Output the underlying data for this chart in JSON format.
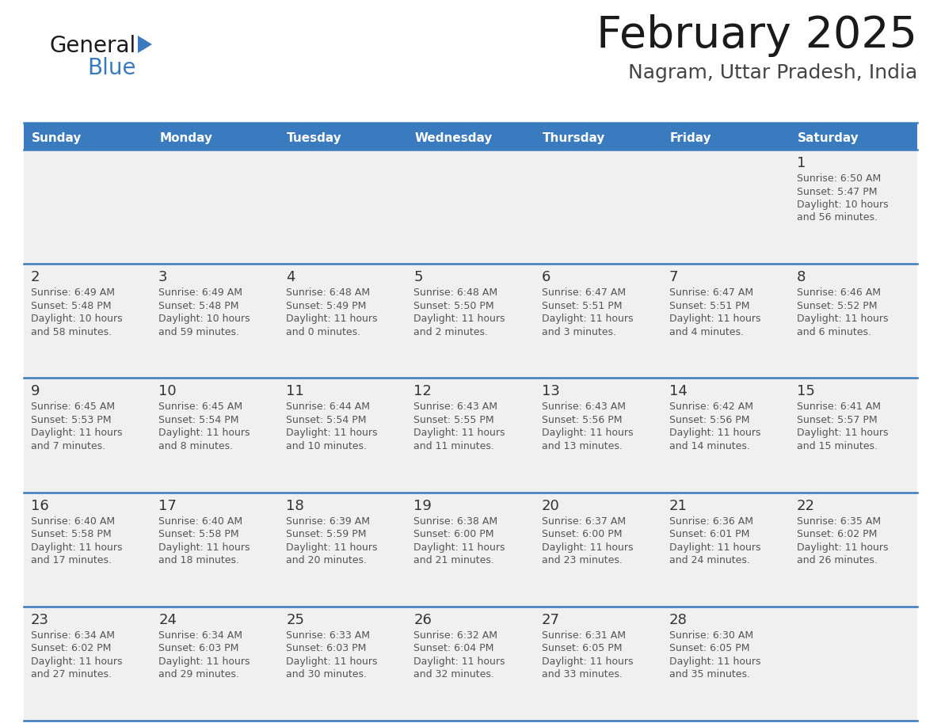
{
  "title": "February 2025",
  "subtitle": "Nagram, Uttar Pradesh, India",
  "header_color": "#3a7abf",
  "header_text_color": "#ffffff",
  "cell_bg_color": "#f0f0f0",
  "empty_row_bg": "#f5f5f5",
  "day_number_color": "#333333",
  "text_color": "#555555",
  "separator_color": "#3a7abf",
  "logo_text_color": "#1a1a1a",
  "logo_blue_color": "#3a7abf",
  "days_of_week": [
    "Sunday",
    "Monday",
    "Tuesday",
    "Wednesday",
    "Thursday",
    "Friday",
    "Saturday"
  ],
  "calendar_data": [
    [
      {
        "day": null,
        "sunrise": null,
        "sunset": null,
        "daylight": null
      },
      {
        "day": null,
        "sunrise": null,
        "sunset": null,
        "daylight": null
      },
      {
        "day": null,
        "sunrise": null,
        "sunset": null,
        "daylight": null
      },
      {
        "day": null,
        "sunrise": null,
        "sunset": null,
        "daylight": null
      },
      {
        "day": null,
        "sunrise": null,
        "sunset": null,
        "daylight": null
      },
      {
        "day": null,
        "sunrise": null,
        "sunset": null,
        "daylight": null
      },
      {
        "day": 1,
        "sunrise": "6:50 AM",
        "sunset": "5:47 PM",
        "daylight": "10 hours and 56 minutes."
      }
    ],
    [
      {
        "day": 2,
        "sunrise": "6:49 AM",
        "sunset": "5:48 PM",
        "daylight": "10 hours and 58 minutes."
      },
      {
        "day": 3,
        "sunrise": "6:49 AM",
        "sunset": "5:48 PM",
        "daylight": "10 hours and 59 minutes."
      },
      {
        "day": 4,
        "sunrise": "6:48 AM",
        "sunset": "5:49 PM",
        "daylight": "11 hours and 0 minutes."
      },
      {
        "day": 5,
        "sunrise": "6:48 AM",
        "sunset": "5:50 PM",
        "daylight": "11 hours and 2 minutes."
      },
      {
        "day": 6,
        "sunrise": "6:47 AM",
        "sunset": "5:51 PM",
        "daylight": "11 hours and 3 minutes."
      },
      {
        "day": 7,
        "sunrise": "6:47 AM",
        "sunset": "5:51 PM",
        "daylight": "11 hours and 4 minutes."
      },
      {
        "day": 8,
        "sunrise": "6:46 AM",
        "sunset": "5:52 PM",
        "daylight": "11 hours and 6 minutes."
      }
    ],
    [
      {
        "day": 9,
        "sunrise": "6:45 AM",
        "sunset": "5:53 PM",
        "daylight": "11 hours and 7 minutes."
      },
      {
        "day": 10,
        "sunrise": "6:45 AM",
        "sunset": "5:54 PM",
        "daylight": "11 hours and 8 minutes."
      },
      {
        "day": 11,
        "sunrise": "6:44 AM",
        "sunset": "5:54 PM",
        "daylight": "11 hours and 10 minutes."
      },
      {
        "day": 12,
        "sunrise": "6:43 AM",
        "sunset": "5:55 PM",
        "daylight": "11 hours and 11 minutes."
      },
      {
        "day": 13,
        "sunrise": "6:43 AM",
        "sunset": "5:56 PM",
        "daylight": "11 hours and 13 minutes."
      },
      {
        "day": 14,
        "sunrise": "6:42 AM",
        "sunset": "5:56 PM",
        "daylight": "11 hours and 14 minutes."
      },
      {
        "day": 15,
        "sunrise": "6:41 AM",
        "sunset": "5:57 PM",
        "daylight": "11 hours and 15 minutes."
      }
    ],
    [
      {
        "day": 16,
        "sunrise": "6:40 AM",
        "sunset": "5:58 PM",
        "daylight": "11 hours and 17 minutes."
      },
      {
        "day": 17,
        "sunrise": "6:40 AM",
        "sunset": "5:58 PM",
        "daylight": "11 hours and 18 minutes."
      },
      {
        "day": 18,
        "sunrise": "6:39 AM",
        "sunset": "5:59 PM",
        "daylight": "11 hours and 20 minutes."
      },
      {
        "day": 19,
        "sunrise": "6:38 AM",
        "sunset": "6:00 PM",
        "daylight": "11 hours and 21 minutes."
      },
      {
        "day": 20,
        "sunrise": "6:37 AM",
        "sunset": "6:00 PM",
        "daylight": "11 hours and 23 minutes."
      },
      {
        "day": 21,
        "sunrise": "6:36 AM",
        "sunset": "6:01 PM",
        "daylight": "11 hours and 24 minutes."
      },
      {
        "day": 22,
        "sunrise": "6:35 AM",
        "sunset": "6:02 PM",
        "daylight": "11 hours and 26 minutes."
      }
    ],
    [
      {
        "day": 23,
        "sunrise": "6:34 AM",
        "sunset": "6:02 PM",
        "daylight": "11 hours and 27 minutes."
      },
      {
        "day": 24,
        "sunrise": "6:34 AM",
        "sunset": "6:03 PM",
        "daylight": "11 hours and 29 minutes."
      },
      {
        "day": 25,
        "sunrise": "6:33 AM",
        "sunset": "6:03 PM",
        "daylight": "11 hours and 30 minutes."
      },
      {
        "day": 26,
        "sunrise": "6:32 AM",
        "sunset": "6:04 PM",
        "daylight": "11 hours and 32 minutes."
      },
      {
        "day": 27,
        "sunrise": "6:31 AM",
        "sunset": "6:05 PM",
        "daylight": "11 hours and 33 minutes."
      },
      {
        "day": 28,
        "sunrise": "6:30 AM",
        "sunset": "6:05 PM",
        "daylight": "11 hours and 35 minutes."
      },
      {
        "day": null,
        "sunrise": null,
        "sunset": null,
        "daylight": null
      }
    ]
  ]
}
